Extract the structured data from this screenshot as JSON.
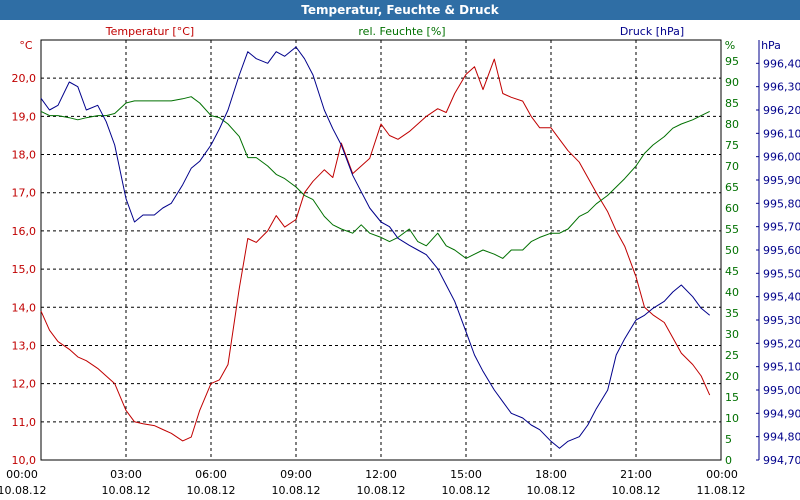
{
  "chart_data": {
    "type": "line",
    "title": "Temperatur, Feuchte & Druck",
    "x_unit": "hours since 10.08.12 00:00",
    "x_ticks": [
      {
        "hour": 0,
        "time": "00:00",
        "date": "10.08.12"
      },
      {
        "hour": 3,
        "time": "03:00",
        "date": "10.08.12"
      },
      {
        "hour": 6,
        "time": "06:00",
        "date": "10.08.12"
      },
      {
        "hour": 9,
        "time": "09:00",
        "date": "10.08.12"
      },
      {
        "hour": 12,
        "time": "12:00",
        "date": "10.08.12"
      },
      {
        "hour": 15,
        "time": "15:00",
        "date": "10.08.12"
      },
      {
        "hour": 18,
        "time": "18:00",
        "date": "10.08.12"
      },
      {
        "hour": 21,
        "time": "21:00",
        "date": "10.08.12"
      },
      {
        "hour": 24,
        "time": "00:00",
        "date": "11.08.12"
      }
    ],
    "xlim": [
      0,
      24
    ],
    "axes": {
      "temperature": {
        "unit": "°C",
        "label": "Temperatur [°C]",
        "ylim": [
          10,
          21
        ],
        "color": "#c00000",
        "ticks": [
          "10,0",
          "11,0",
          "12,0",
          "13,0",
          "14,0",
          "15,0",
          "16,0",
          "17,0",
          "18,0",
          "19,0",
          "20,0"
        ]
      },
      "humidity": {
        "unit": "%",
        "label": "rel. Feuchte [%]",
        "ylim": [
          0,
          100
        ],
        "color": "#007000",
        "ticks": [
          "0",
          "5",
          "10",
          "15",
          "20",
          "25",
          "30",
          "35",
          "40",
          "45",
          "50",
          "55",
          "60",
          "65",
          "70",
          "75",
          "80",
          "85",
          "90",
          "95"
        ]
      },
      "pressure": {
        "unit": "hPa",
        "label": "Druck [hPa]",
        "ylim": [
          994.7,
          996.5
        ],
        "color": "#00008b",
        "ticks": [
          "994,70",
          "994,80",
          "994,90",
          "995,00",
          "995,10",
          "995,20",
          "995,30",
          "995,40",
          "995,50",
          "995,60",
          "995,70",
          "995,80",
          "995,90",
          "996,00",
          "996,10",
          "996,20",
          "996,30",
          "996,40"
        ]
      }
    },
    "grid": true,
    "series": [
      {
        "name": "Temperatur",
        "axis": "temperature",
        "color": "#c00000",
        "x": [
          0,
          0.3,
          0.6,
          1,
          1.3,
          1.6,
          2,
          2.3,
          2.6,
          3,
          3.3,
          3.6,
          4,
          4.3,
          4.6,
          5,
          5.3,
          5.6,
          6,
          6.3,
          6.6,
          7,
          7.3,
          7.6,
          8,
          8.3,
          8.6,
          9,
          9.3,
          9.6,
          10,
          10.3,
          10.6,
          11,
          11.3,
          11.6,
          12,
          12.3,
          12.6,
          13,
          13.3,
          13.6,
          14,
          14.3,
          14.6,
          15,
          15.3,
          15.6,
          16,
          16.3,
          16.6,
          17,
          17.3,
          17.6,
          18,
          18.3,
          18.6,
          19,
          19.3,
          19.6,
          20,
          20.3,
          20.6,
          21,
          21.3,
          21.6,
          22,
          22.3,
          22.6,
          23,
          23.3,
          23.6
        ],
        "values": [
          13.9,
          13.4,
          13.1,
          12.9,
          12.7,
          12.6,
          12.4,
          12.2,
          12.0,
          11.3,
          11.0,
          10.95,
          10.9,
          10.8,
          10.7,
          10.5,
          10.6,
          11.3,
          12.0,
          12.1,
          12.5,
          14.5,
          15.8,
          15.7,
          16.0,
          16.4,
          16.1,
          16.3,
          17.0,
          17.3,
          17.6,
          17.4,
          18.3,
          17.5,
          17.7,
          17.9,
          18.8,
          18.5,
          18.4,
          18.6,
          18.8,
          19.0,
          19.2,
          19.1,
          19.6,
          20.1,
          20.3,
          19.7,
          20.5,
          19.6,
          19.5,
          19.4,
          19.0,
          18.7,
          18.7,
          18.4,
          18.1,
          17.8,
          17.4,
          17.0,
          16.5,
          16.0,
          15.6,
          14.8,
          14.0,
          13.8,
          13.6,
          13.2,
          12.8,
          12.5,
          12.2,
          11.7
        ]
      },
      {
        "name": "rel. Feuchte",
        "axis": "humidity",
        "color": "#007000",
        "x": [
          0,
          0.3,
          0.6,
          1,
          1.3,
          1.6,
          2,
          2.3,
          2.6,
          3,
          3.3,
          3.6,
          4,
          4.3,
          4.6,
          5,
          5.3,
          5.6,
          6,
          6.3,
          6.6,
          7,
          7.3,
          7.6,
          8,
          8.3,
          8.6,
          9,
          9.3,
          9.6,
          10,
          10.3,
          10.6,
          11,
          11.3,
          11.6,
          12,
          12.3,
          12.6,
          13,
          13.3,
          13.6,
          14,
          14.3,
          14.6,
          15,
          15.3,
          15.6,
          16,
          16.3,
          16.6,
          17,
          17.3,
          17.6,
          18,
          18.3,
          18.6,
          19,
          19.3,
          19.6,
          20,
          20.3,
          20.6,
          21,
          21.3,
          21.6,
          22,
          22.3,
          22.6,
          23,
          23.3,
          23.6
        ],
        "values": [
          83,
          82,
          82,
          81.5,
          81,
          81.5,
          82,
          82,
          82.5,
          85,
          85.5,
          85.5,
          85.5,
          85.5,
          85.5,
          86,
          86.5,
          85,
          82,
          81.5,
          80,
          77,
          72,
          72,
          70,
          68,
          67,
          65,
          63,
          62,
          58,
          56,
          55,
          54,
          56,
          54,
          53,
          52,
          53,
          55,
          52,
          51,
          54,
          51,
          50,
          48,
          49,
          50,
          49,
          48,
          50,
          50,
          52,
          53,
          54,
          54,
          55,
          58,
          59,
          61,
          63,
          65,
          67,
          70,
          73,
          75,
          77,
          79,
          80,
          81,
          82,
          83
        ]
      },
      {
        "name": "Druck",
        "axis": "pressure",
        "color": "#00008b",
        "x": [
          0,
          0.3,
          0.6,
          1,
          1.3,
          1.6,
          2,
          2.3,
          2.6,
          3,
          3.3,
          3.6,
          4,
          4.3,
          4.6,
          5,
          5.3,
          5.6,
          6,
          6.3,
          6.6,
          7,
          7.3,
          7.6,
          8,
          8.3,
          8.6,
          9,
          9.3,
          9.6,
          10,
          10.3,
          10.6,
          11,
          11.3,
          11.6,
          12,
          12.3,
          12.6,
          13,
          13.3,
          13.6,
          14,
          14.3,
          14.6,
          15,
          15.3,
          15.6,
          16,
          16.3,
          16.6,
          17,
          17.3,
          17.6,
          18,
          18.3,
          18.6,
          19,
          19.3,
          19.6,
          20,
          20.3,
          20.6,
          21,
          21.3,
          21.6,
          22,
          22.3,
          22.6,
          23,
          23.3,
          23.6
        ],
        "values": [
          996.25,
          996.2,
          996.22,
          996.32,
          996.3,
          996.2,
          996.22,
          996.15,
          996.05,
          995.82,
          995.72,
          995.75,
          995.75,
          995.78,
          995.8,
          995.88,
          995.95,
          995.98,
          996.05,
          996.12,
          996.2,
          996.35,
          996.45,
          996.42,
          996.4,
          996.45,
          996.43,
          996.47,
          996.42,
          996.35,
          996.2,
          996.12,
          996.05,
          995.92,
          995.85,
          995.78,
          995.72,
          995.7,
          995.65,
          995.62,
          995.6,
          995.58,
          995.52,
          995.45,
          995.38,
          995.25,
          995.15,
          995.08,
          995.0,
          994.95,
          994.9,
          994.88,
          994.85,
          994.83,
          994.78,
          994.75,
          994.78,
          994.8,
          994.85,
          994.92,
          995.0,
          995.15,
          995.22,
          995.3,
          995.32,
          995.35,
          995.38,
          995.42,
          995.45,
          995.4,
          995.35,
          995.32
        ]
      }
    ]
  }
}
